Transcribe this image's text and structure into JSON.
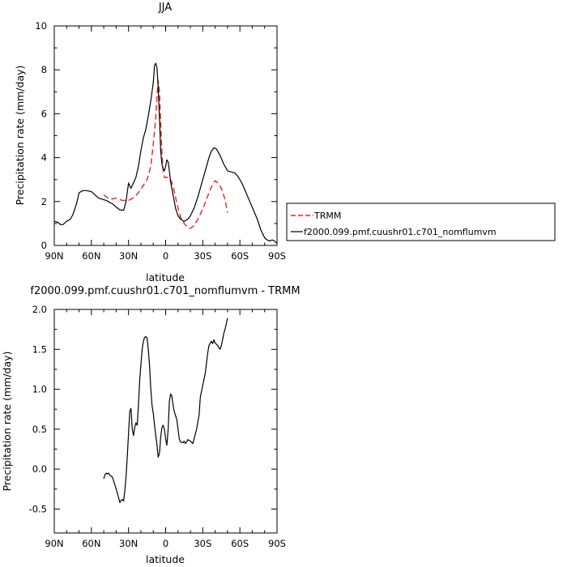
{
  "chart_data": [
    {
      "type": "line",
      "title": "JJA",
      "xlabel": "latitude",
      "ylabel": "Precipitation rate (mm/day)",
      "xlim": [
        90,
        -90
      ],
      "ylim": [
        0,
        10
      ],
      "xticks": [
        90,
        60,
        30,
        0,
        -30,
        -60,
        -90
      ],
      "xtick_labels": [
        "90N",
        "60N",
        "30N",
        "0",
        "30S",
        "60S",
        "90S"
      ],
      "yticks": [
        0,
        2,
        4,
        6,
        8,
        10
      ],
      "ytick_labels": [
        "0",
        "2",
        "4",
        "6",
        "8",
        "10"
      ],
      "legend_position": "right",
      "series": [
        {
          "name": "TRMM",
          "color": "#e8231f",
          "dash": "dashed",
          "points": [
            [
              50,
              2.3
            ],
            [
              45,
              2.1
            ],
            [
              40,
              2.15
            ],
            [
              35,
              2.05
            ],
            [
              30,
              2.05
            ],
            [
              25,
              2.2
            ],
            [
              20,
              2.55
            ],
            [
              15,
              3.0
            ],
            [
              12,
              3.6
            ],
            [
              10,
              4.6
            ],
            [
              8,
              5.8
            ],
            [
              7,
              6.8
            ],
            [
              6,
              7.5
            ],
            [
              5,
              7.0
            ],
            [
              4,
              5.6
            ],
            [
              3,
              4.2
            ],
            [
              2,
              3.4
            ],
            [
              1,
              3.1
            ],
            [
              0,
              3.1
            ],
            [
              -2,
              3.1
            ],
            [
              -4,
              3.0
            ],
            [
              -6,
              2.7
            ],
            [
              -8,
              2.2
            ],
            [
              -10,
              1.7
            ],
            [
              -12,
              1.3
            ],
            [
              -15,
              1.0
            ],
            [
              -18,
              0.8
            ],
            [
              -20,
              0.78
            ],
            [
              -23,
              0.9
            ],
            [
              -27,
              1.3
            ],
            [
              -31,
              1.8
            ],
            [
              -35,
              2.4
            ],
            [
              -38,
              2.8
            ],
            [
              -40,
              2.95
            ],
            [
              -42,
              2.85
            ],
            [
              -45,
              2.6
            ],
            [
              -48,
              2.1
            ],
            [
              -50,
              1.5
            ]
          ]
        },
        {
          "name": "f2000.099.pmf.cuushr01.c701_nomflumvm",
          "color": "#000000",
          "dash": "solid",
          "points": [
            [
              90,
              1.1
            ],
            [
              87,
              1.05
            ],
            [
              85,
              0.95
            ],
            [
              83,
              0.95
            ],
            [
              80,
              1.1
            ],
            [
              77,
              1.2
            ],
            [
              75,
              1.4
            ],
            [
              72,
              1.9
            ],
            [
              70,
              2.4
            ],
            [
              67,
              2.5
            ],
            [
              64,
              2.5
            ],
            [
              60,
              2.45
            ],
            [
              57,
              2.3
            ],
            [
              54,
              2.15
            ],
            [
              51,
              2.1
            ],
            [
              48,
              2.05
            ],
            [
              45,
              1.95
            ],
            [
              43,
              1.9
            ],
            [
              40,
              1.75
            ],
            [
              37,
              1.62
            ],
            [
              34,
              1.6
            ],
            [
              32,
              2.0
            ],
            [
              30,
              2.85
            ],
            [
              29,
              2.7
            ],
            [
              28,
              2.6
            ],
            [
              26,
              2.85
            ],
            [
              24,
              3.1
            ],
            [
              22,
              3.6
            ],
            [
              20,
              4.3
            ],
            [
              18,
              4.9
            ],
            [
              16,
              5.3
            ],
            [
              14,
              5.9
            ],
            [
              12,
              6.6
            ],
            [
              10,
              7.4
            ],
            [
              9,
              8.2
            ],
            [
              8,
              8.3
            ],
            [
              7,
              8.1
            ],
            [
              6,
              7.2
            ],
            [
              5,
              5.8
            ],
            [
              4,
              4.3
            ],
            [
              3,
              3.7
            ],
            [
              2,
              3.5
            ],
            [
              1,
              3.4
            ],
            [
              0,
              3.6
            ],
            [
              -1,
              3.9
            ],
            [
              -2,
              3.8
            ],
            [
              -3,
              3.4
            ],
            [
              -4,
              2.9
            ],
            [
              -6,
              2.3
            ],
            [
              -8,
              1.7
            ],
            [
              -10,
              1.35
            ],
            [
              -12,
              1.2
            ],
            [
              -15,
              1.1
            ],
            [
              -18,
              1.2
            ],
            [
              -20,
              1.35
            ],
            [
              -23,
              1.7
            ],
            [
              -26,
              2.2
            ],
            [
              -29,
              2.8
            ],
            [
              -32,
              3.4
            ],
            [
              -35,
              4.0
            ],
            [
              -37,
              4.3
            ],
            [
              -39,
              4.45
            ],
            [
              -41,
              4.4
            ],
            [
              -44,
              4.1
            ],
            [
              -47,
              3.7
            ],
            [
              -50,
              3.4
            ],
            [
              -53,
              3.35
            ],
            [
              -56,
              3.3
            ],
            [
              -59,
              3.1
            ],
            [
              -62,
              2.8
            ],
            [
              -65,
              2.4
            ],
            [
              -68,
              2.0
            ],
            [
              -71,
              1.6
            ],
            [
              -74,
              1.2
            ],
            [
              -77,
              0.7
            ],
            [
              -80,
              0.35
            ],
            [
              -82,
              0.25
            ],
            [
              -84,
              0.2
            ],
            [
              -86,
              0.25
            ],
            [
              -88,
              0.2
            ],
            [
              -90,
              0.1
            ]
          ]
        }
      ]
    },
    {
      "type": "line",
      "title": "f2000.099.pmf.cuushr01.c701_nomflumvm - TRMM",
      "xlabel": "latitude",
      "ylabel": "Precipitation rate (mm/day)",
      "xlim": [
        90,
        -90
      ],
      "ylim": [
        -0.8,
        2.0
      ],
      "xticks": [
        90,
        60,
        30,
        0,
        -30,
        -60,
        -90
      ],
      "xtick_labels": [
        "90N",
        "60N",
        "30N",
        "0",
        "30S",
        "60S",
        "90S"
      ],
      "yticks": [
        -0.5,
        0.0,
        0.5,
        1.0,
        1.5,
        2.0
      ],
      "ytick_labels": [
        "-0.5",
        "0.0",
        "0.5",
        "1.0",
        "1.5",
        "2.0"
      ],
      "series": [
        {
          "name": "",
          "color": "#000000",
          "dash": "solid",
          "points": [
            [
              50,
              -0.12
            ],
            [
              49,
              -0.07
            ],
            [
              48,
              -0.05
            ],
            [
              47,
              -0.06
            ],
            [
              46,
              -0.05
            ],
            [
              45,
              -0.08
            ],
            [
              43,
              -0.1
            ],
            [
              41,
              -0.2
            ],
            [
              39,
              -0.3
            ],
            [
              37,
              -0.42
            ],
            [
              36,
              -0.39
            ],
            [
              35,
              -0.38
            ],
            [
              34,
              -0.4
            ],
            [
              33,
              -0.27
            ],
            [
              32,
              -0.1
            ],
            [
              31,
              0.15
            ],
            [
              30,
              0.45
            ],
            [
              29,
              0.72
            ],
            [
              28,
              0.76
            ],
            [
              27,
              0.5
            ],
            [
              26,
              0.42
            ],
            [
              25,
              0.52
            ],
            [
              24,
              0.58
            ],
            [
              23,
              0.55
            ],
            [
              22,
              0.8
            ],
            [
              21,
              1.1
            ],
            [
              20,
              1.3
            ],
            [
              19,
              1.5
            ],
            [
              18,
              1.6
            ],
            [
              17,
              1.65
            ],
            [
              16,
              1.66
            ],
            [
              15,
              1.64
            ],
            [
              14,
              1.5
            ],
            [
              13,
              1.3
            ],
            [
              12,
              1.0
            ],
            [
              11,
              0.8
            ],
            [
              10,
              0.7
            ],
            [
              9,
              0.55
            ],
            [
              8,
              0.42
            ],
            [
              7,
              0.3
            ],
            [
              6,
              0.15
            ],
            [
              5,
              0.2
            ],
            [
              4,
              0.4
            ],
            [
              3,
              0.52
            ],
            [
              2,
              0.55
            ],
            [
              1,
              0.5
            ],
            [
              0,
              0.38
            ],
            [
              -1,
              0.3
            ],
            [
              -2,
              0.5
            ],
            [
              -3,
              0.85
            ],
            [
              -4,
              0.94
            ],
            [
              -5,
              0.92
            ],
            [
              -6,
              0.8
            ],
            [
              -7,
              0.72
            ],
            [
              -8,
              0.67
            ],
            [
              -9,
              0.62
            ],
            [
              -10,
              0.5
            ],
            [
              -11,
              0.38
            ],
            [
              -12,
              0.34
            ],
            [
              -14,
              0.33
            ],
            [
              -15,
              0.35
            ],
            [
              -16,
              0.32
            ],
            [
              -17,
              0.34
            ],
            [
              -18,
              0.37
            ],
            [
              -20,
              0.35
            ],
            [
              -22,
              0.32
            ],
            [
              -23,
              0.38
            ],
            [
              -25,
              0.5
            ],
            [
              -27,
              0.68
            ],
            [
              -28,
              0.9
            ],
            [
              -30,
              1.05
            ],
            [
              -32,
              1.2
            ],
            [
              -34,
              1.45
            ],
            [
              -35,
              1.55
            ],
            [
              -37,
              1.6
            ],
            [
              -38,
              1.57
            ],
            [
              -39,
              1.62
            ],
            [
              -40,
              1.58
            ],
            [
              -42,
              1.55
            ],
            [
              -44,
              1.5
            ],
            [
              -45,
              1.55
            ],
            [
              -46,
              1.62
            ],
            [
              -47,
              1.7
            ],
            [
              -48,
              1.75
            ],
            [
              -49,
              1.82
            ],
            [
              -50,
              1.89
            ]
          ]
        }
      ]
    }
  ]
}
